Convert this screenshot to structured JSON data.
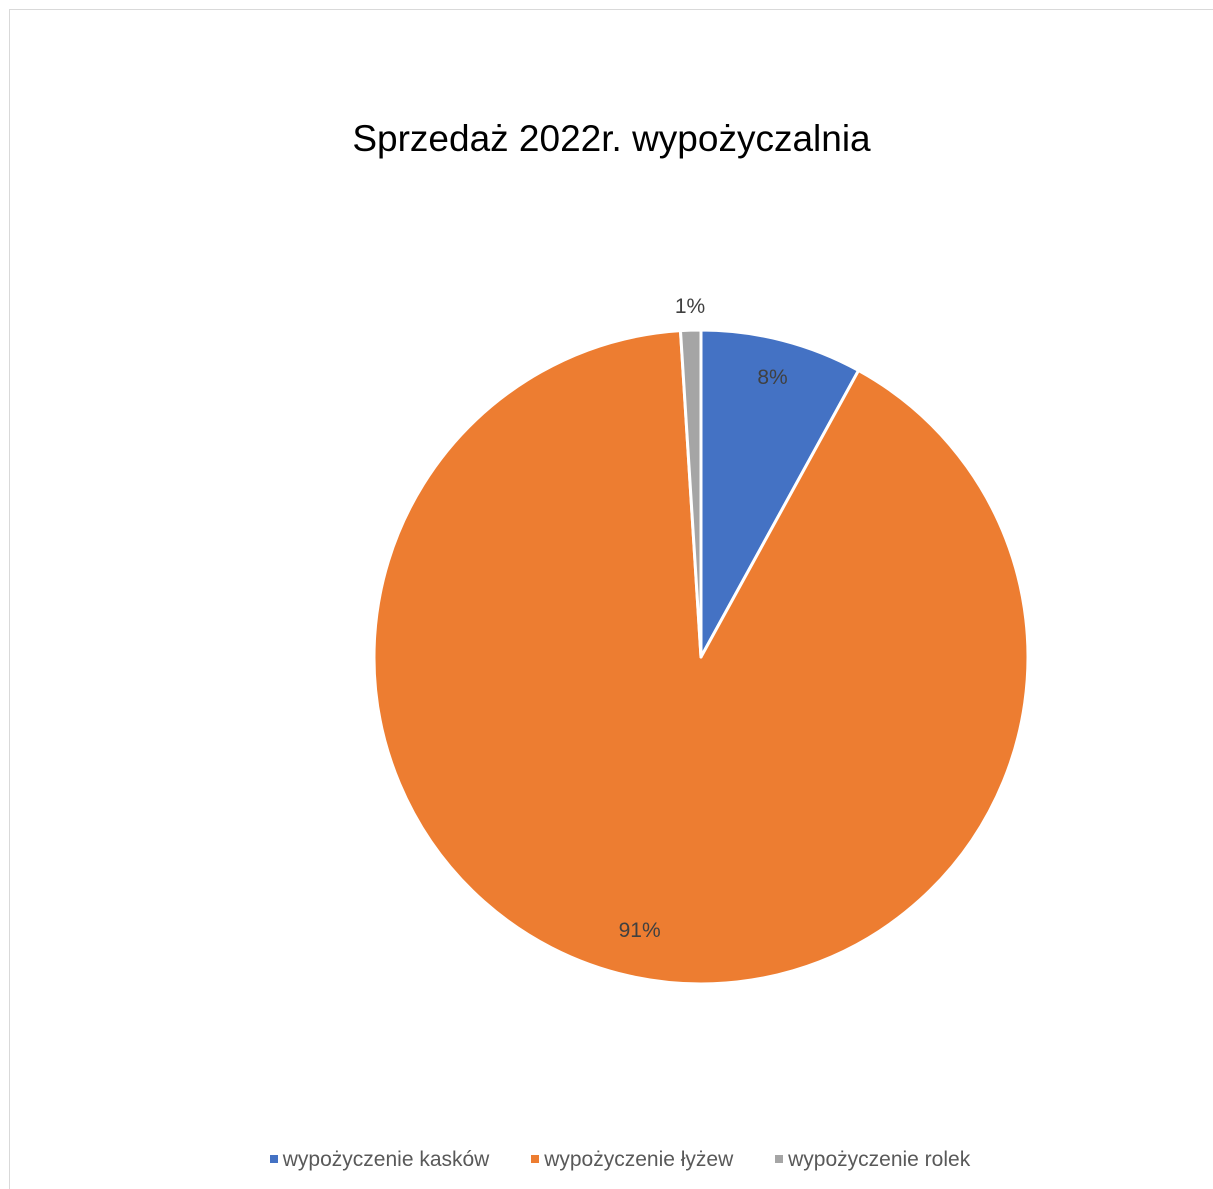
{
  "chart_data": {
    "type": "pie",
    "title": "Sprzedaż 2022r. wypożyczalnia",
    "categories": [
      "wypożyczenie kasków",
      "wypożyczenie łyżew",
      "wypożyczenie rolek"
    ],
    "values": [
      8,
      91,
      1
    ],
    "data_labels": [
      "8%",
      "91%",
      "1%"
    ],
    "colors": [
      "#4472c4",
      "#ed7d31",
      "#a5a5a5"
    ],
    "start_angle": "12 o'clock",
    "direction": "clockwise",
    "legend_position": "bottom"
  }
}
